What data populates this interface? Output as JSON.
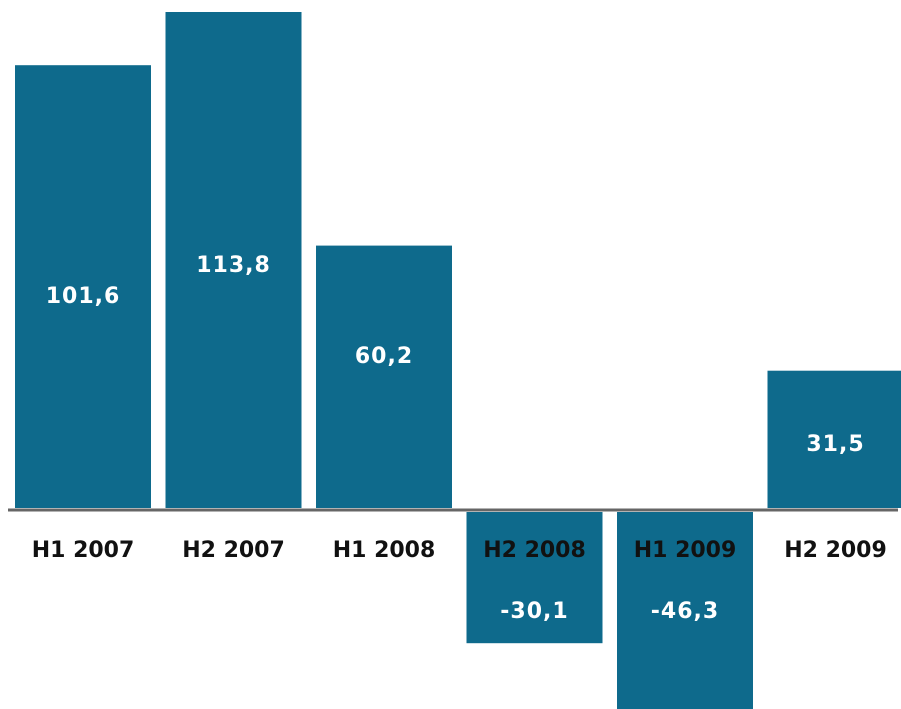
{
  "chart_data": {
    "type": "bar",
    "categories": [
      "H1 2007",
      "H2 2007",
      "H1 2008",
      "H2 2008",
      "H1 2009",
      "H2 2009"
    ],
    "values": [
      101.6,
      113.8,
      60.2,
      -30.1,
      -46.3,
      31.5
    ],
    "value_labels": [
      "101,6",
      "113,8",
      "60,2",
      "-30,1",
      "-46,3",
      "31,5"
    ],
    "title": "",
    "xlabel": "",
    "ylabel": "",
    "ylim": [
      -50,
      120
    ],
    "grid": false,
    "legend": "none",
    "colors": {
      "bar": "#0e6a8c",
      "baseline": "#666666",
      "value_text": "#ffffff",
      "category_text": "#111111"
    }
  }
}
